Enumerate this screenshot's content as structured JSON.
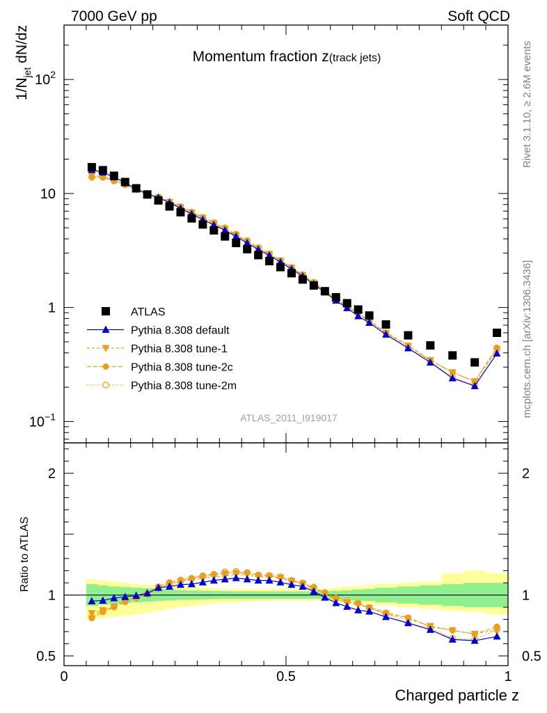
{
  "header": {
    "left": "7000 GeV pp",
    "right": "Soft QCD"
  },
  "side_labels": {
    "rivet": "Rivet 3.1.10, ≥ 2.6M events",
    "mcplots": "mcplots.cern.ch [arXiv:1306.3436]"
  },
  "analysis_id": "ATLAS_2011_I919017",
  "colors": {
    "data": "#000000",
    "default": "#0000cc",
    "tunes": "#e8a020",
    "band_inner": "#90f090",
    "band_outer": "#ffff99"
  },
  "chart_data": [
    {
      "type": "scatter",
      "panel": "main",
      "title": "Momentum fraction z(track jets)",
      "title_main": "Momentum fraction z",
      "title_sub": "(track jets)",
      "ylabel": "1/N_jet dN/dz",
      "y_scale": "log",
      "ylim": [
        0.065,
        300
      ],
      "xlim": [
        0,
        1
      ],
      "y_tick_labels": [
        "10^-1",
        "1",
        "10",
        "10^2"
      ],
      "legend": [
        "ATLAS",
        "Pythia 8.308 default",
        "Pythia 8.308 tune-1",
        "Pythia 8.308 tune-2c",
        "Pythia 8.308 tune-2m"
      ],
      "legend_position": "bottom-left",
      "x": [
        0.0625,
        0.0875,
        0.1125,
        0.1375,
        0.1625,
        0.1875,
        0.2125,
        0.2375,
        0.2625,
        0.2875,
        0.3125,
        0.3375,
        0.3625,
        0.3875,
        0.4125,
        0.4375,
        0.4625,
        0.4875,
        0.5125,
        0.5375,
        0.5625,
        0.5875,
        0.6125,
        0.6375,
        0.6625,
        0.6875,
        0.725,
        0.775,
        0.825,
        0.875,
        0.925,
        0.975
      ],
      "series": [
        {
          "name": "ATLAS",
          "marker": "square",
          "values": [
            17.0,
            16.0,
            14.3,
            12.6,
            11.1,
            9.8,
            8.7,
            7.7,
            6.85,
            6.05,
            5.35,
            4.75,
            4.2,
            3.68,
            3.25,
            2.88,
            2.55,
            2.26,
            2.0,
            1.76,
            1.56,
            1.39,
            1.23,
            1.09,
            0.96,
            0.85,
            0.71,
            0.57,
            0.465,
            0.38,
            0.33,
            0.6
          ]
        },
        {
          "name": "Pythia 8.308 default",
          "marker": "triangle-up",
          "values": [
            16.1,
            15.3,
            13.9,
            12.4,
            11.0,
            9.9,
            9.2,
            8.3,
            7.4,
            6.6,
            5.9,
            5.3,
            4.75,
            4.2,
            3.68,
            3.22,
            2.86,
            2.5,
            2.17,
            1.88,
            1.6,
            1.36,
            1.15,
            0.99,
            0.84,
            0.735,
            0.58,
            0.44,
            0.33,
            0.24,
            0.205,
            0.395
          ]
        },
        {
          "name": "Pythia 8.308 tune-1",
          "marker": "triangle-down",
          "values": [
            14.4,
            14.0,
            13.0,
            12.0,
            10.8,
            9.8,
            9.2,
            8.4,
            7.6,
            6.8,
            6.1,
            5.45,
            4.85,
            4.3,
            3.78,
            3.3,
            2.93,
            2.57,
            2.23,
            1.92,
            1.64,
            1.4,
            1.18,
            1.02,
            0.88,
            0.76,
            0.6,
            0.46,
            0.345,
            0.27,
            0.225,
            0.43
          ]
        },
        {
          "name": "Pythia 8.308 tune-2c",
          "marker": "circle",
          "values": [
            13.8,
            13.8,
            12.9,
            11.9,
            10.9,
            9.9,
            9.3,
            8.5,
            7.7,
            6.9,
            6.2,
            5.55,
            4.95,
            4.35,
            3.82,
            3.35,
            2.95,
            2.58,
            2.24,
            1.93,
            1.65,
            1.41,
            1.19,
            1.03,
            0.89,
            0.765,
            0.605,
            0.465,
            0.345,
            0.27,
            0.225,
            0.445
          ]
        },
        {
          "name": "Pythia 8.308 tune-2m",
          "marker": "circle-open",
          "values": [
            14.0,
            13.9,
            12.9,
            11.9,
            10.9,
            9.9,
            9.2,
            8.4,
            7.6,
            6.85,
            6.15,
            5.55,
            5.0,
            4.4,
            3.85,
            3.35,
            2.96,
            2.58,
            2.24,
            1.94,
            1.66,
            1.42,
            1.2,
            1.04,
            0.9,
            0.76,
            0.6,
            0.44,
            0.34,
            0.245,
            0.21,
            0.43
          ]
        }
      ]
    },
    {
      "type": "line",
      "panel": "ratio",
      "ylabel": "Ratio to ATLAS",
      "xlabel": "Charged particle z",
      "ylim": [
        0.42,
        2.25
      ],
      "xlim": [
        0,
        1
      ],
      "x_tick_labels": [
        "0",
        "0.5",
        "1"
      ],
      "y_tick_labels": [
        "0.5",
        "1",
        "2"
      ],
      "x": [
        0.0625,
        0.0875,
        0.1125,
        0.1375,
        0.1625,
        0.1875,
        0.2125,
        0.2375,
        0.2625,
        0.2875,
        0.3125,
        0.3375,
        0.3625,
        0.3875,
        0.4125,
        0.4375,
        0.4625,
        0.4875,
        0.5125,
        0.5375,
        0.5625,
        0.5875,
        0.6125,
        0.6375,
        0.6625,
        0.6875,
        0.725,
        0.775,
        0.825,
        0.875,
        0.925,
        0.975
      ],
      "uncertainty_bands": {
        "bin_edges": [
          0.05,
          0.075,
          0.1,
          0.125,
          0.15,
          0.175,
          0.2,
          0.225,
          0.25,
          0.275,
          0.3,
          0.325,
          0.35,
          0.375,
          0.4,
          0.425,
          0.45,
          0.475,
          0.5,
          0.525,
          0.55,
          0.575,
          0.6,
          0.625,
          0.65,
          0.675,
          0.7,
          0.75,
          0.8,
          0.85,
          0.9,
          0.95,
          1.0
        ],
        "inner_low": [
          0.91,
          0.92,
          0.93,
          0.935,
          0.94,
          0.945,
          0.95,
          0.955,
          0.96,
          0.962,
          0.964,
          0.966,
          0.968,
          0.97,
          0.97,
          0.97,
          0.97,
          0.97,
          0.97,
          0.97,
          0.97,
          0.97,
          0.965,
          0.96,
          0.955,
          0.95,
          0.94,
          0.93,
          0.92,
          0.91,
          0.9,
          0.9
        ],
        "inner_high": [
          1.09,
          1.08,
          1.07,
          1.065,
          1.06,
          1.055,
          1.05,
          1.045,
          1.04,
          1.038,
          1.036,
          1.034,
          1.032,
          1.03,
          1.03,
          1.03,
          1.03,
          1.03,
          1.03,
          1.03,
          1.03,
          1.03,
          1.035,
          1.04,
          1.045,
          1.05,
          1.06,
          1.07,
          1.08,
          1.09,
          1.1,
          1.1
        ],
        "outer_low": [
          0.8,
          0.81,
          0.82,
          0.83,
          0.84,
          0.855,
          0.87,
          0.885,
          0.9,
          0.91,
          0.92,
          0.93,
          0.935,
          0.94,
          0.945,
          0.95,
          0.95,
          0.955,
          0.955,
          0.955,
          0.955,
          0.955,
          0.95,
          0.94,
          0.935,
          0.93,
          0.915,
          0.9,
          0.885,
          0.87,
          0.86,
          0.84
        ],
        "outer_high": [
          1.13,
          1.12,
          1.11,
          1.1,
          1.09,
          1.085,
          1.08,
          1.075,
          1.07,
          1.065,
          1.06,
          1.055,
          1.05,
          1.05,
          1.05,
          1.05,
          1.05,
          1.05,
          1.05,
          1.05,
          1.05,
          1.05,
          1.06,
          1.07,
          1.075,
          1.08,
          1.09,
          1.1,
          1.11,
          1.18,
          1.2,
          1.18
        ]
      },
      "series": [
        {
          "name": "Pythia 8.308 default",
          "marker": "triangle-up",
          "values": [
            0.95,
            0.955,
            0.975,
            0.985,
            0.995,
            1.015,
            1.06,
            1.07,
            1.085,
            1.09,
            1.105,
            1.12,
            1.13,
            1.14,
            1.13,
            1.12,
            1.12,
            1.105,
            1.085,
            1.07,
            1.03,
            0.98,
            0.935,
            0.905,
            0.875,
            0.865,
            0.82,
            0.77,
            0.715,
            0.635,
            0.625,
            0.66
          ]
        },
        {
          "name": "Pythia 8.308 tune-1",
          "marker": "triangle-down",
          "values": [
            0.85,
            0.875,
            0.905,
            0.95,
            0.975,
            1.0,
            1.055,
            1.09,
            1.11,
            1.125,
            1.14,
            1.15,
            1.155,
            1.17,
            1.165,
            1.15,
            1.15,
            1.14,
            1.115,
            1.09,
            1.05,
            1.01,
            0.96,
            0.935,
            0.92,
            0.895,
            0.845,
            0.805,
            0.745,
            0.71,
            0.68,
            0.715
          ]
        },
        {
          "name": "Pythia 8.308 tune-2c",
          "marker": "circle",
          "values": [
            0.81,
            0.86,
            0.9,
            0.945,
            0.98,
            1.01,
            1.07,
            1.105,
            1.125,
            1.14,
            1.16,
            1.17,
            1.18,
            1.185,
            1.18,
            1.165,
            1.16,
            1.145,
            1.12,
            1.095,
            1.06,
            1.015,
            0.97,
            0.945,
            0.93,
            0.9,
            0.855,
            0.815,
            0.74,
            0.71,
            0.68,
            0.74
          ]
        },
        {
          "name": "Pythia 8.308 tune-2m",
          "marker": "circle-open",
          "values": [
            0.82,
            0.87,
            0.905,
            0.945,
            0.98,
            1.01,
            1.06,
            1.095,
            1.11,
            1.135,
            1.15,
            1.17,
            1.19,
            1.195,
            1.185,
            1.165,
            1.16,
            1.15,
            1.12,
            1.1,
            1.065,
            1.02,
            0.975,
            0.955,
            0.935,
            0.895,
            0.845,
            0.77,
            0.73,
            0.645,
            0.635,
            0.715
          ]
        }
      ]
    }
  ]
}
